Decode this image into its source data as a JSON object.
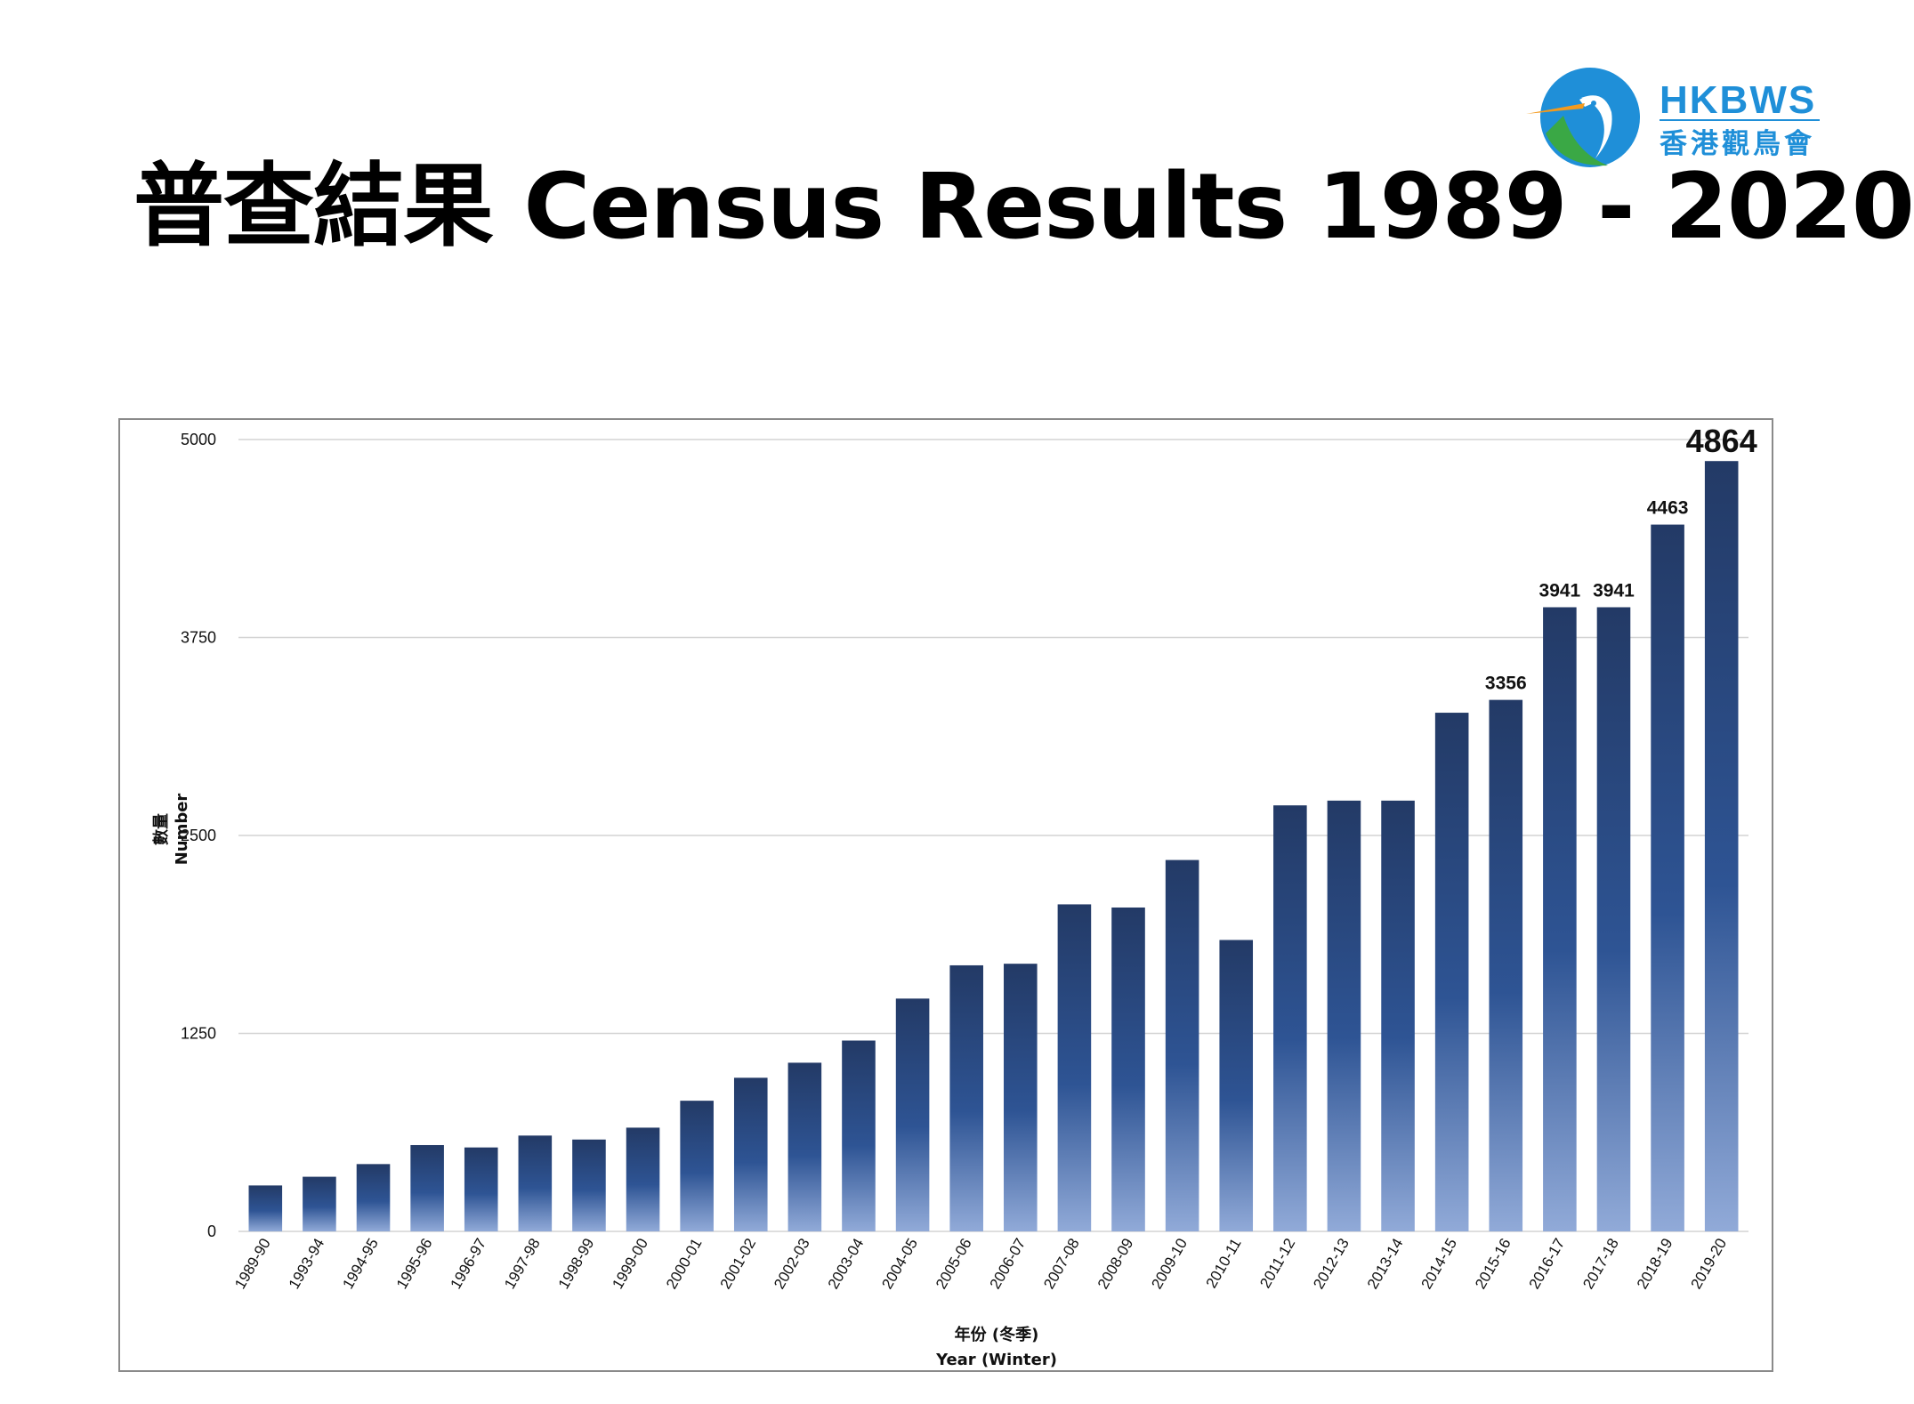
{
  "page": {
    "title": "普查結果 Census Results 1989 - 2020"
  },
  "logo": {
    "name_en": "HKBWS",
    "name_zh": "香港觀鳥會",
    "colors": {
      "blue": "#1f8fd8",
      "green": "#3aa845",
      "orange": "#f39a1e"
    }
  },
  "chart_data": {
    "type": "bar",
    "xlabel_zh": "年份 (冬季)",
    "xlabel_en": "Year (Winter)",
    "ylabel_zh": "數量",
    "ylabel_en": "Number",
    "ylim": [
      0,
      5000
    ],
    "yticks": [
      0,
      1250,
      2500,
      3750,
      5000
    ],
    "grid": true,
    "legend": "none",
    "bar_color_top": "#233a66",
    "bar_color_mid": "#2e5494",
    "bar_color_bottom": "#91aad8",
    "categories": [
      "1989-90",
      "1993-94",
      "1994-95",
      "1995-96",
      "1996-97",
      "1997-98",
      "1998-99",
      "1999-00",
      "2000-01",
      "2001-02",
      "2002-03",
      "2003-04",
      "2004-05",
      "2005-06",
      "2006-07",
      "2007-08",
      "2008-09",
      "2009-10",
      "2010-11",
      "2011-12",
      "2012-13",
      "2013-14",
      "2014-15",
      "2015-16",
      "2016-17",
      "2017-18",
      "2018-19",
      "2019-20"
    ],
    "values": [
      290,
      345,
      425,
      545,
      530,
      605,
      580,
      655,
      825,
      970,
      1065,
      1205,
      1470,
      1680,
      1690,
      2065,
      2045,
      2345,
      1840,
      2690,
      2720,
      2720,
      3275,
      3356,
      3941,
      3941,
      4463,
      4864
    ],
    "data_labels": [
      {
        "index": 23,
        "text": "3356"
      },
      {
        "index": 24,
        "text": "3941"
      },
      {
        "index": 25,
        "text": "3941"
      },
      {
        "index": 26,
        "text": "4463"
      },
      {
        "index": 27,
        "text": "4864",
        "emphasis": true
      }
    ]
  }
}
